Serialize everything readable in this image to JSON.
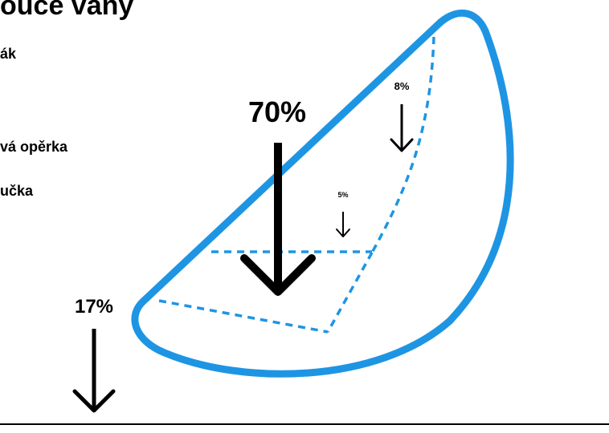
{
  "title": "ouce vany",
  "legend": [
    {
      "label": "ák"
    },
    {
      "label": "vá opěrka"
    },
    {
      "label": "učka"
    }
  ],
  "loads": [
    {
      "id": "main",
      "label": "70%",
      "value": 70
    },
    {
      "id": "upper",
      "label": "8%",
      "value": 8
    },
    {
      "id": "middle",
      "label": "5%",
      "value": 5
    },
    {
      "id": "outside",
      "label": "17%",
      "value": 17
    }
  ],
  "colors": {
    "tub_outline": "#1e95e3",
    "arrows": "#000000",
    "baseline": "#000000"
  }
}
